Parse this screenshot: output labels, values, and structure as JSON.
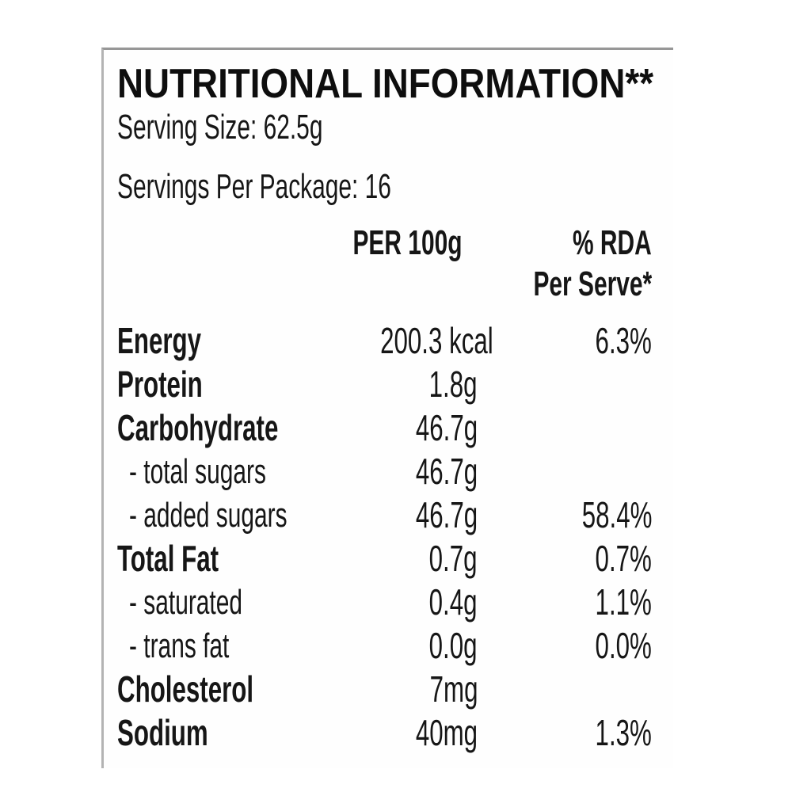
{
  "label": {
    "title": "NUTRITIONAL INFORMATION**",
    "serving_size": "Serving Size: 62.5g",
    "servings_per_package": "Servings Per Package: 16",
    "columns": {
      "per": "PER 100g",
      "rda_line1": "% RDA",
      "rda_line2": "Per Serve*"
    },
    "rows": [
      {
        "name": "Energy",
        "per100g": "200.3 kcal",
        "rda": "6.3%",
        "sub": false
      },
      {
        "name": "Protein",
        "per100g": "1.8g",
        "rda": "",
        "sub": false
      },
      {
        "name": "Carbohydrate",
        "per100g": "46.7g",
        "rda": "",
        "sub": false
      },
      {
        "name": "- total sugars",
        "per100g": "46.7g",
        "rda": "",
        "sub": true
      },
      {
        "name": "- added sugars",
        "per100g": "46.7g",
        "rda": "58.4%",
        "sub": true
      },
      {
        "name": "Total Fat",
        "per100g": "0.7g",
        "rda": "0.7%",
        "sub": false
      },
      {
        "name": "- saturated",
        "per100g": "0.4g",
        "rda": "1.1%",
        "sub": true
      },
      {
        "name": "- trans fat",
        "per100g": "0.0g",
        "rda": "0.0%",
        "sub": true
      },
      {
        "name": "Cholesterol",
        "per100g": "7mg",
        "rda": "",
        "sub": false
      },
      {
        "name": "Sodium",
        "per100g": "40mg",
        "rda": "1.3%",
        "sub": false
      }
    ]
  }
}
